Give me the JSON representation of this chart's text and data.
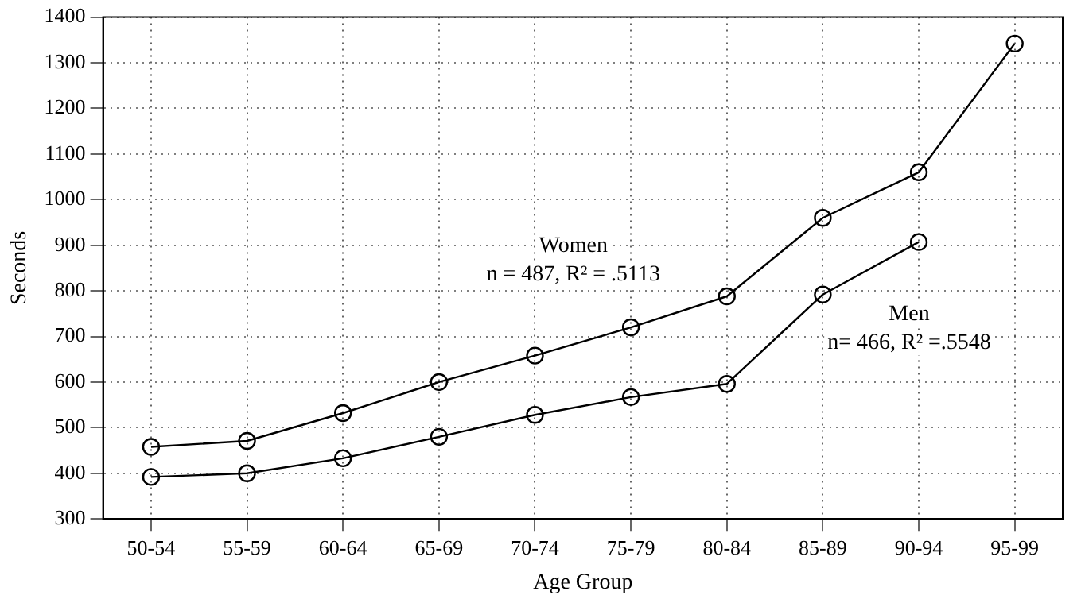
{
  "chart_data": {
    "type": "line",
    "xlabel": "Age Group",
    "ylabel": "Seconds",
    "categories": [
      "50-54",
      "55-59",
      "60-64",
      "65-69",
      "70-74",
      "75-79",
      "80-84",
      "85-89",
      "90-94",
      "95-99"
    ],
    "series": [
      {
        "name": "Women",
        "color": "#000000",
        "values": [
          458,
          471,
          532,
          600,
          658,
          720,
          788,
          960,
          1060,
          1342
        ]
      },
      {
        "name": "Men",
        "color": "#000000",
        "values": [
          392,
          400,
          433,
          480,
          528,
          567,
          596,
          792,
          907,
          null
        ]
      }
    ],
    "annotations": [
      "n = 487, R² = .5113",
      "n= 466, R² =.5548"
    ],
    "ylim": [
      300,
      1400
    ],
    "yticks": [
      300,
      400,
      500,
      600,
      700,
      800,
      900,
      1000,
      1100,
      1200,
      1300,
      1400
    ],
    "grid": true,
    "legend": false,
    "marker": "circle",
    "line_style": "solid"
  }
}
